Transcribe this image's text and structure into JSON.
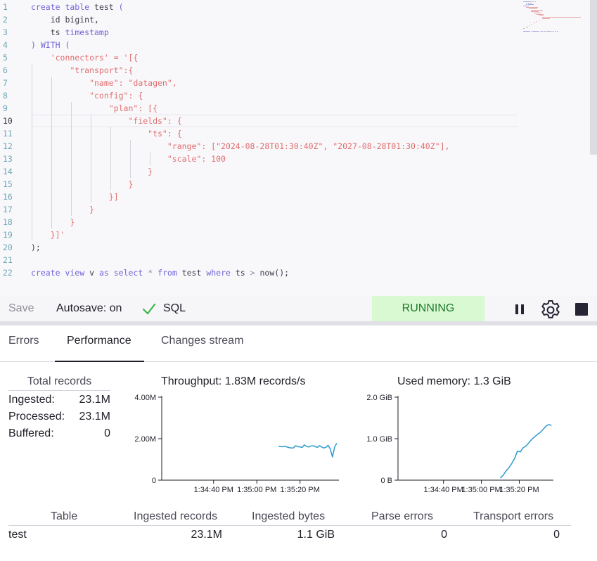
{
  "editor": {
    "line_numbers": [
      "1",
      "2",
      "3",
      "4",
      "5",
      "6",
      "7",
      "8",
      "9",
      "10",
      "11",
      "12",
      "13",
      "14",
      "15",
      "16",
      "17",
      "18",
      "19",
      "20",
      "21",
      "22"
    ],
    "active_line": "10",
    "lines": [
      [
        {
          "t": "create table ",
          "c": "kw"
        },
        {
          "t": "test",
          "c": "plain"
        },
        {
          "t": " (",
          "c": "kw"
        }
      ],
      [
        {
          "t": "    id ",
          "c": "plain"
        },
        {
          "t": "bigint",
          "c": "plain"
        },
        {
          "t": ",",
          "c": "plain"
        }
      ],
      [
        {
          "t": "    ts ",
          "c": "plain"
        },
        {
          "t": "timestamp",
          "c": "kw"
        }
      ],
      [
        {
          "t": ") WITH (",
          "c": "kw"
        }
      ],
      [
        {
          "t": "    'connectors' = '[{",
          "c": "str"
        }
      ],
      [
        {
          "t": "        \"transport\":{",
          "c": "str"
        }
      ],
      [
        {
          "t": "            \"name\": \"datagen\",",
          "c": "str"
        }
      ],
      [
        {
          "t": "            \"config\": {",
          "c": "str"
        }
      ],
      [
        {
          "t": "                \"plan\": [{",
          "c": "str"
        }
      ],
      [
        {
          "t": "                    \"fields\": {",
          "c": "str"
        }
      ],
      [
        {
          "t": "                        \"ts\": {",
          "c": "str"
        }
      ],
      [
        {
          "t": "                            \"range\": [\"2024-08-28T01:30:40Z\", \"2027-08-28T01:30:40Z\"],",
          "c": "str"
        }
      ],
      [
        {
          "t": "                            \"scale\": 100",
          "c": "str"
        }
      ],
      [
        {
          "t": "                        }",
          "c": "str"
        }
      ],
      [
        {
          "t": "                    }",
          "c": "str"
        }
      ],
      [
        {
          "t": "                }]",
          "c": "str"
        }
      ],
      [
        {
          "t": "            }",
          "c": "str"
        }
      ],
      [
        {
          "t": "        }",
          "c": "str"
        }
      ],
      [
        {
          "t": "    }]'",
          "c": "str"
        }
      ],
      [
        {
          "t": ");",
          "c": "plain"
        }
      ],
      [],
      [
        {
          "t": "create view ",
          "c": "kw"
        },
        {
          "t": "v ",
          "c": "plain"
        },
        {
          "t": "as select ",
          "c": "kw"
        },
        {
          "t": "* ",
          "c": "op"
        },
        {
          "t": "from ",
          "c": "kw"
        },
        {
          "t": "test ",
          "c": "plain"
        },
        {
          "t": "where ",
          "c": "kw"
        },
        {
          "t": "ts ",
          "c": "plain"
        },
        {
          "t": "> ",
          "c": "op"
        },
        {
          "t": "now",
          "c": "plain"
        },
        {
          "t": "();",
          "c": "plain"
        }
      ]
    ]
  },
  "toolbar": {
    "save_label": "Save",
    "autosave_label": "Autosave: on",
    "sql_label": "SQL",
    "status": "RUNNING",
    "status_color": "#d9f9d2",
    "check_color": "#3bb54a"
  },
  "tabs": [
    {
      "label": "Errors"
    },
    {
      "label": "Performance"
    },
    {
      "label": "Changes stream"
    }
  ],
  "totals": {
    "title": "Total records",
    "rows": [
      {
        "label": "Ingested:",
        "value": "23.1M"
      },
      {
        "label": "Processed:",
        "value": "23.1M"
      },
      {
        "label": "Buffered:",
        "value": "0"
      }
    ]
  },
  "chart_data": [
    {
      "type": "line",
      "title": "Throughput: 1.83M records/s",
      "y_ticks": [
        "4.00M",
        "2.00M",
        "0"
      ],
      "x_ticks": [
        "1:34:40 PM",
        "1:35:00 PM",
        "1:35:20 PM"
      ],
      "ylim": [
        0,
        4.0
      ],
      "y_unit": "M records/s",
      "line_color": "#3aa0cf",
      "series": [
        {
          "x": [
            1000,
            1001,
            1002,
            1003,
            1004,
            1005,
            1006,
            1007,
            1008,
            1009,
            1010,
            1011,
            1012,
            1013,
            1014,
            1015,
            1016,
            1017,
            1018,
            1019,
            1020,
            1021,
            1022,
            1023,
            1024,
            1025,
            1026,
            1027
          ],
          "y": [
            1.62,
            1.62,
            1.61,
            1.63,
            1.6,
            1.57,
            1.55,
            1.56,
            1.66,
            1.62,
            1.6,
            1.58,
            1.7,
            1.63,
            1.6,
            1.64,
            1.66,
            1.62,
            1.58,
            1.66,
            1.6,
            1.55,
            1.59,
            1.68,
            1.5,
            1.12,
            1.6,
            1.78
          ]
        }
      ],
      "x_range": [
        946,
        1028
      ],
      "x_tick_values": [
        970,
        990,
        1010
      ]
    },
    {
      "type": "line",
      "title": "Used memory: 1.3 GiB",
      "y_ticks": [
        "2.0 GiB",
        "1.0 GiB",
        "0 B"
      ],
      "x_ticks": [
        "1:34:40 PM",
        "1:35:00 PM",
        "1:35:20 PM"
      ],
      "ylim": [
        0,
        2.0
      ],
      "y_unit": "GiB",
      "line_color": "#3aa0cf",
      "series": [
        {
          "x": [
            1000,
            1001.5,
            1003,
            1004.5,
            1006,
            1007.5,
            1009,
            1010.5,
            1012,
            1013.5,
            1015,
            1016.5,
            1018,
            1019.5,
            1021,
            1022.5,
            1024,
            1025.5,
            1027
          ],
          "y": [
            0.05,
            0.12,
            0.22,
            0.3,
            0.4,
            0.52,
            0.7,
            0.68,
            0.78,
            0.82,
            0.9,
            0.98,
            1.04,
            1.1,
            1.15,
            1.22,
            1.3,
            1.34,
            1.32
          ]
        }
      ],
      "x_range": [
        946,
        1028
      ],
      "x_tick_values": [
        970,
        990,
        1010
      ]
    }
  ],
  "table": {
    "headers": [
      "Table",
      "Ingested records",
      "Ingested bytes",
      "Parse errors",
      "Transport errors"
    ],
    "rows": [
      {
        "table": "test",
        "records": "23.1M",
        "bytes": "1.1 GiB",
        "parse_errors": "0",
        "transport_errors": "0"
      }
    ]
  }
}
